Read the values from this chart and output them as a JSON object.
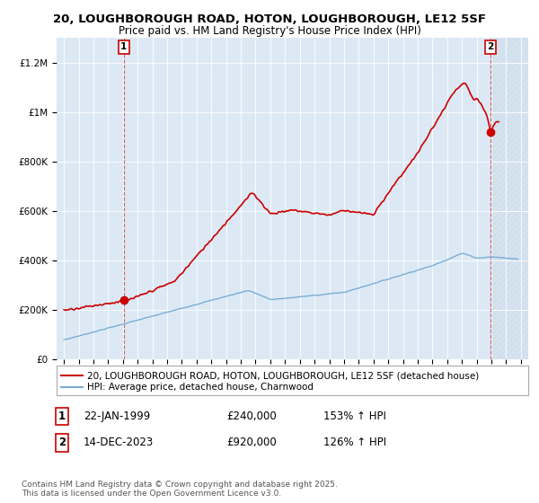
{
  "title": "20, LOUGHBOROUGH ROAD, HOTON, LOUGHBOROUGH, LE12 5SF",
  "subtitle": "Price paid vs. HM Land Registry's House Price Index (HPI)",
  "ylim": [
    0,
    1300000
  ],
  "yticks": [
    0,
    200000,
    400000,
    600000,
    800000,
    1000000,
    1200000
  ],
  "ytick_labels": [
    "£0",
    "£200K",
    "£400K",
    "£600K",
    "£800K",
    "£1M",
    "£1.2M"
  ],
  "xmin": 1994.5,
  "xmax": 2026.5,
  "xticks": [
    1995,
    1996,
    1997,
    1998,
    1999,
    2000,
    2001,
    2002,
    2003,
    2004,
    2005,
    2006,
    2007,
    2008,
    2009,
    2010,
    2011,
    2012,
    2013,
    2014,
    2015,
    2016,
    2017,
    2018,
    2019,
    2020,
    2021,
    2022,
    2023,
    2024,
    2025,
    2026
  ],
  "sale1_x": 1999.056,
  "sale1_y": 240000,
  "sale1_label": "1",
  "sale2_x": 2023.954,
  "sale2_y": 920000,
  "sale2_label": "2",
  "line_color_red": "#cc0000",
  "line_color_blue": "#7aadd4",
  "background_chart": "#dce9f5",
  "background_fig": "#ffffff",
  "grid_color": "#ffffff",
  "legend1": "20, LOUGHBOROUGH ROAD, HOTON, LOUGHBOROUGH, LE12 5SF (detached house)",
  "legend2": "HPI: Average price, detached house, Charnwood",
  "annotation1_date": "22-JAN-1999",
  "annotation1_price": "£240,000",
  "annotation1_hpi": "153% ↑ HPI",
  "annotation2_date": "14-DEC-2023",
  "annotation2_price": "£920,000",
  "annotation2_hpi": "126% ↑ HPI",
  "footnote": "Contains HM Land Registry data © Crown copyright and database right 2025.\nThis data is licensed under the Open Government Licence v3.0.",
  "title_fontsize": 9.5,
  "subtitle_fontsize": 8.5,
  "tick_fontsize": 7.5,
  "legend_fontsize": 7.5,
  "annot_fontsize": 8.5,
  "footnote_fontsize": 6.5
}
